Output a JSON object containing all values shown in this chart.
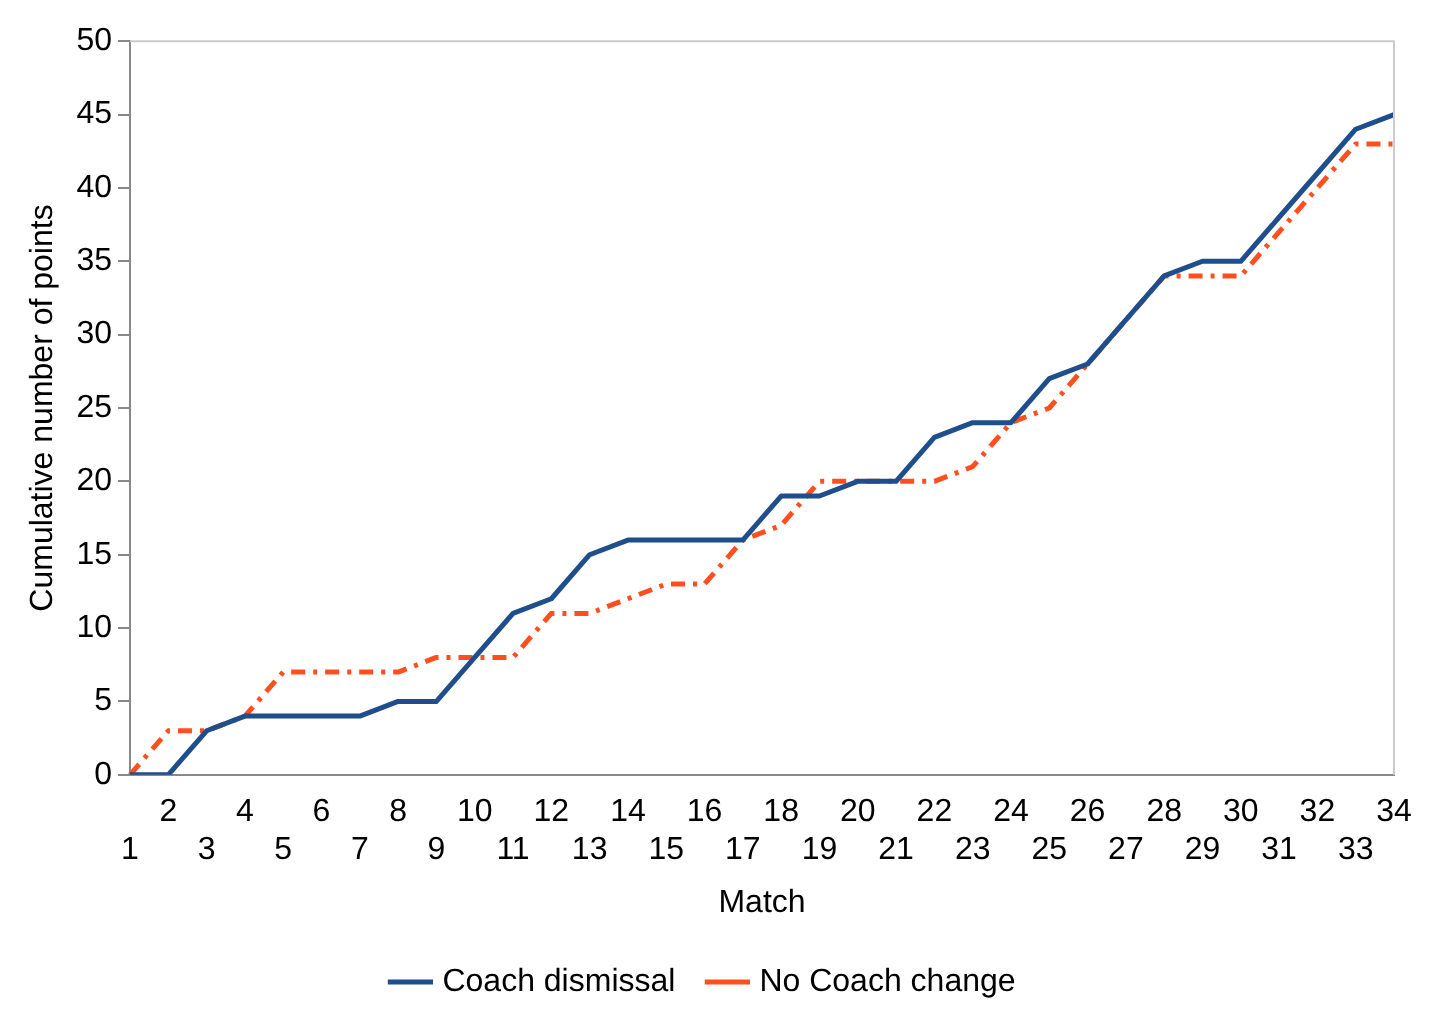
{
  "chart_data": {
    "type": "line",
    "xlabel": "Match",
    "ylabel": "Cumulative number of points",
    "categories": [
      "1",
      "2",
      "3",
      "4",
      "5",
      "6",
      "7",
      "8",
      "9",
      "10",
      "11",
      "12",
      "13",
      "14",
      "15",
      "16",
      "17",
      "18",
      "19",
      "20",
      "21",
      "22",
      "23",
      "24",
      "25",
      "26",
      "27",
      "28",
      "29",
      "30",
      "31",
      "32",
      "33",
      "34"
    ],
    "series": [
      {
        "name": "Coach dismissal",
        "color": "#1f4e8c",
        "line_style": "solid",
        "values": [
          0,
          0,
          3,
          4,
          4,
          4,
          4,
          5,
          5,
          8,
          11,
          12,
          15,
          16,
          16,
          16,
          16,
          19,
          19,
          20,
          20,
          23,
          24,
          24,
          27,
          28,
          31,
          34,
          35,
          35,
          38,
          41,
          44,
          45
        ]
      },
      {
        "name": "No Coach change",
        "color": "#ff4f1f",
        "line_style": "dashed",
        "values": [
          0,
          3,
          3,
          4,
          7,
          7,
          7,
          7,
          8,
          8,
          8,
          11,
          11,
          12,
          13,
          13,
          16,
          17,
          20,
          20,
          20,
          20,
          21,
          24,
          25,
          28,
          31,
          34,
          34,
          34,
          37,
          40,
          43,
          43
        ]
      }
    ],
    "ylim": [
      0,
      50
    ],
    "yticks": [
      0,
      5,
      10,
      15,
      20,
      25,
      30,
      35,
      40,
      45,
      50
    ],
    "grid": false,
    "legend": "bottom",
    "marker": "none"
  }
}
